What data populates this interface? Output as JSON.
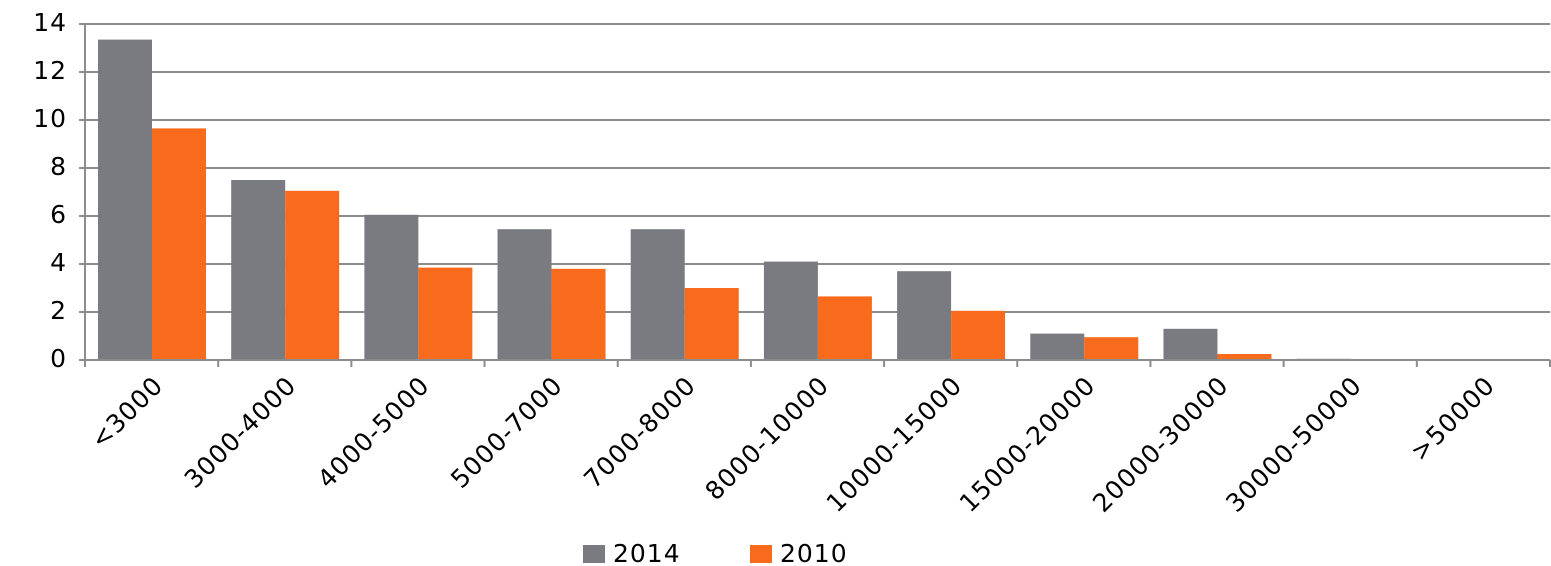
{
  "chart_data": {
    "type": "bar",
    "categories": [
      "<3000",
      "3000-4000",
      "4000-5000",
      "5000-7000",
      "7000-8000",
      "8000-10000",
      "10000-15000",
      "15000-20000",
      "20000-30000",
      "30000-50000",
      ">50000"
    ],
    "series": [
      {
        "name": "2014",
        "color": "#7a7b80",
        "values": [
          13.35,
          7.5,
          6.05,
          5.45,
          5.45,
          4.1,
          3.7,
          1.1,
          1.3,
          0.05,
          0
        ]
      },
      {
        "name": "2010",
        "color": "#f96b1c",
        "values": [
          9.65,
          7.05,
          3.85,
          3.8,
          3.0,
          2.65,
          2.05,
          0.95,
          0.25,
          0,
          0
        ]
      }
    ],
    "ylim": [
      0,
      14
    ],
    "yticks": [
      0,
      2,
      4,
      6,
      8,
      10,
      12,
      14
    ],
    "grid": true,
    "legend": "bottom"
  }
}
